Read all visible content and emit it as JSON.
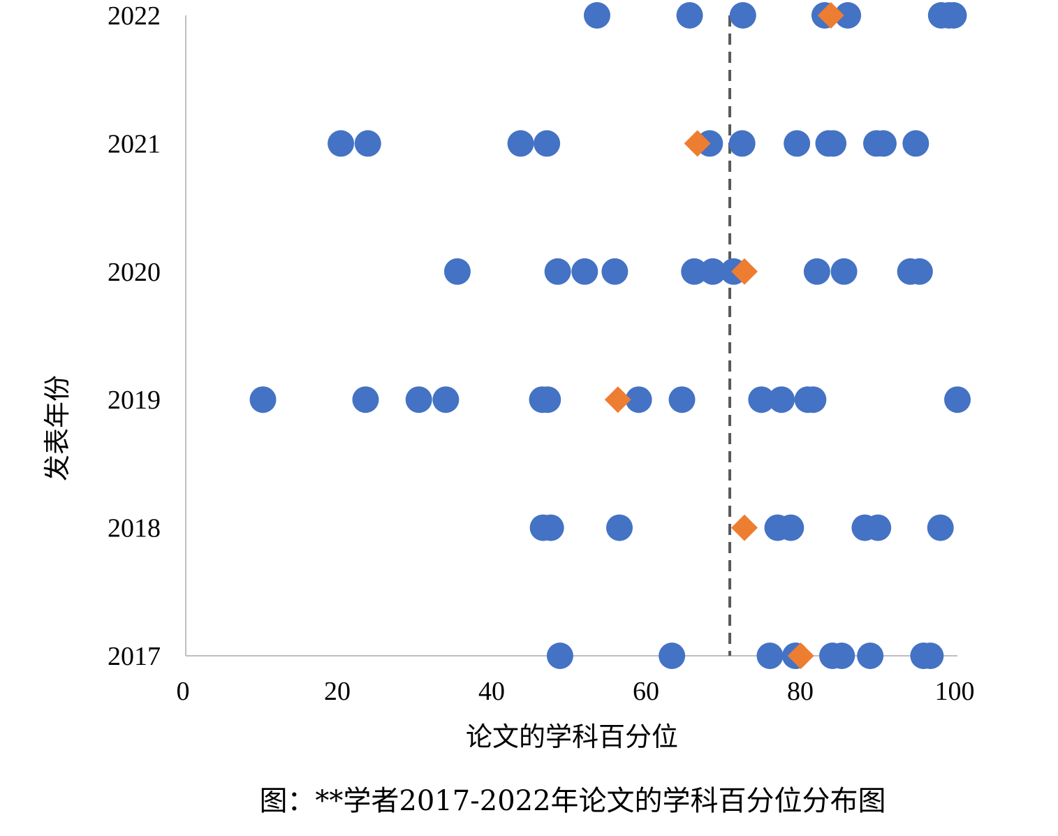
{
  "chart_data": {
    "type": "scatter",
    "caption": "图：**学者2017-2022年论文的学科百分位分布图",
    "xlabel": "论文的学科百分位",
    "ylabel": "发表年份",
    "xlim": [
      0,
      100
    ],
    "ylim": [
      2017,
      2022
    ],
    "x_ticks": [
      0,
      20,
      40,
      60,
      80,
      100
    ],
    "y_ticks": [
      2017,
      2018,
      2019,
      2020,
      2021,
      2022
    ],
    "grid": false,
    "legend": "none",
    "reference_line": {
      "x": 70.5,
      "style": "dashed",
      "color": "#595959"
    },
    "series": [
      {
        "marker": "circle",
        "color": "#4472C4",
        "points": [
          {
            "x": 48.5,
            "y": 2017
          },
          {
            "x": 63,
            "y": 2017
          },
          {
            "x": 75.7,
            "y": 2017
          },
          {
            "x": 79,
            "y": 2017
          },
          {
            "x": 83.8,
            "y": 2017
          },
          {
            "x": 85,
            "y": 2017
          },
          {
            "x": 88.7,
            "y": 2017
          },
          {
            "x": 95.6,
            "y": 2017
          },
          {
            "x": 96.5,
            "y": 2017
          },
          {
            "x": 46.3,
            "y": 2018
          },
          {
            "x": 47.3,
            "y": 2018
          },
          {
            "x": 56.2,
            "y": 2018
          },
          {
            "x": 76.7,
            "y": 2018
          },
          {
            "x": 78.4,
            "y": 2018
          },
          {
            "x": 88,
            "y": 2018
          },
          {
            "x": 89.7,
            "y": 2018
          },
          {
            "x": 97.8,
            "y": 2018
          },
          {
            "x": 10,
            "y": 2019
          },
          {
            "x": 23.3,
            "y": 2019
          },
          {
            "x": 30.2,
            "y": 2019
          },
          {
            "x": 33.7,
            "y": 2019
          },
          {
            "x": 46.2,
            "y": 2019
          },
          {
            "x": 46.9,
            "y": 2019
          },
          {
            "x": 58.7,
            "y": 2019
          },
          {
            "x": 64.3,
            "y": 2019
          },
          {
            "x": 74.6,
            "y": 2019
          },
          {
            "x": 77.2,
            "y": 2019
          },
          {
            "x": 80.6,
            "y": 2019
          },
          {
            "x": 81.3,
            "y": 2019
          },
          {
            "x": 100,
            "y": 2019
          },
          {
            "x": 35.2,
            "y": 2020
          },
          {
            "x": 48.2,
            "y": 2020
          },
          {
            "x": 51.7,
            "y": 2020
          },
          {
            "x": 55.6,
            "y": 2020
          },
          {
            "x": 65.9,
            "y": 2020
          },
          {
            "x": 68.3,
            "y": 2020
          },
          {
            "x": 71,
            "y": 2020
          },
          {
            "x": 81.8,
            "y": 2020
          },
          {
            "x": 85.3,
            "y": 2020
          },
          {
            "x": 93.9,
            "y": 2020
          },
          {
            "x": 95.1,
            "y": 2020
          },
          {
            "x": 20.1,
            "y": 2021
          },
          {
            "x": 23.6,
            "y": 2021
          },
          {
            "x": 43.4,
            "y": 2021
          },
          {
            "x": 46.8,
            "y": 2021
          },
          {
            "x": 67.9,
            "y": 2021
          },
          {
            "x": 72.1,
            "y": 2021
          },
          {
            "x": 79.2,
            "y": 2021
          },
          {
            "x": 83.3,
            "y": 2021
          },
          {
            "x": 83.9,
            "y": 2021
          },
          {
            "x": 89.5,
            "y": 2021
          },
          {
            "x": 90.4,
            "y": 2021
          },
          {
            "x": 94.6,
            "y": 2021
          },
          {
            "x": 53.3,
            "y": 2022
          },
          {
            "x": 65.3,
            "y": 2022
          },
          {
            "x": 72.2,
            "y": 2022
          },
          {
            "x": 82.8,
            "y": 2022
          },
          {
            "x": 85.8,
            "y": 2022
          },
          {
            "x": 97.9,
            "y": 2022
          },
          {
            "x": 98.9,
            "y": 2022
          },
          {
            "x": 99.5,
            "y": 2022
          }
        ]
      },
      {
        "marker": "diamond",
        "color": "#ED7D31",
        "points": [
          {
            "x": 79.7,
            "y": 2017
          },
          {
            "x": 72.4,
            "y": 2018
          },
          {
            "x": 56,
            "y": 2019
          },
          {
            "x": 72.4,
            "y": 2020
          },
          {
            "x": 66.3,
            "y": 2021
          },
          {
            "x": 83.6,
            "y": 2022
          }
        ]
      }
    ]
  }
}
